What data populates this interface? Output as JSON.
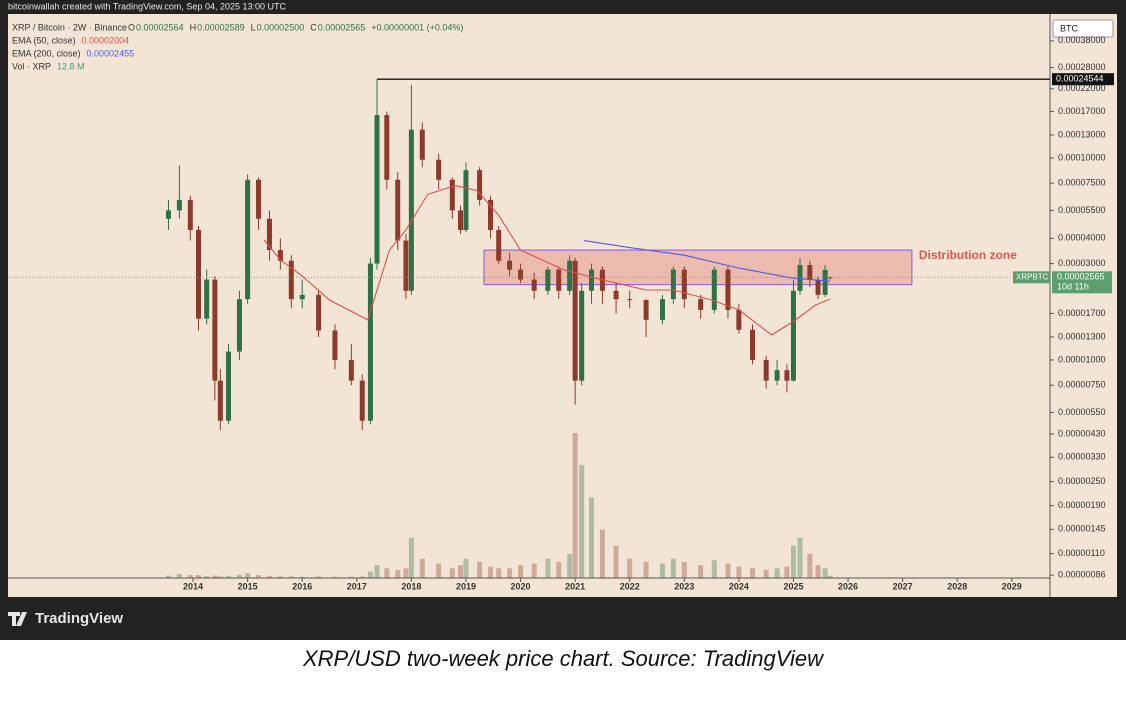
{
  "header": "bitcoinwallah created with TradingView.com, Sep 04, 2025 13:00 UTC",
  "legend": {
    "symbol": "XRP / Bitcoin · 2W · Binance",
    "ohlc": [
      {
        "key": "O",
        "value": "0.00002564"
      },
      {
        "key": "H",
        "value": "0.00002589"
      },
      {
        "key": "L",
        "value": "0.00002500"
      },
      {
        "key": "C",
        "value": "0.00002565"
      }
    ],
    "change": "+0.00000001 (+0.04%)",
    "indicators": [
      {
        "name": "EMA (50, close)",
        "value": "0.00002004",
        "color": "#e0504a"
      },
      {
        "name": "EMA (200, close)",
        "value": "0.00002455",
        "color": "#4a5ee0"
      },
      {
        "name": "Vol · XRP",
        "value": "12.8 M",
        "color": "#3d9a8b"
      }
    ]
  },
  "chart_data": {
    "type": "candlestick",
    "y_axis_unit": "BTC",
    "log_scale": true,
    "xlim": [
      2010.61,
      2029.7
    ],
    "xticks": [
      2014,
      2015,
      2016,
      2017,
      2018,
      2019,
      2020,
      2021,
      2022,
      2023,
      2024,
      2025,
      2026,
      2027,
      2028,
      2029
    ],
    "ylim": [
      8.33e-07,
      0.000516
    ],
    "yticks": [
      {
        "value": 0.00038,
        "label": "0.00038000"
      },
      {
        "value": 0.00028,
        "label": "0.00028000"
      },
      {
        "value": 0.00022,
        "label": "0.00022000"
      },
      {
        "value": 0.00017,
        "label": "0.00017000"
      },
      {
        "value": 0.00013,
        "label": "0.00013000"
      },
      {
        "value": 0.0001,
        "label": "0.00010000"
      },
      {
        "value": 7.5e-05,
        "label": "0.00007500"
      },
      {
        "value": 5.5e-05,
        "label": "0.00005500"
      },
      {
        "value": 4e-05,
        "label": "0.00004000"
      },
      {
        "value": 3e-05,
        "label": "0.00003000"
      },
      {
        "value": 1.7e-05,
        "label": "0.00001700"
      },
      {
        "value": 1.3e-05,
        "label": "0.00001300"
      },
      {
        "value": 1e-05,
        "label": "0.00001000"
      },
      {
        "value": 7.5e-06,
        "label": "0.00000750"
      },
      {
        "value": 5.5e-06,
        "label": "0.00000550"
      },
      {
        "value": 4.3e-06,
        "label": "0.00000430"
      },
      {
        "value": 3.3e-06,
        "label": "0.00000330"
      },
      {
        "value": 2.5e-06,
        "label": "0.00000250"
      },
      {
        "value": 1.9e-06,
        "label": "0.00000190"
      },
      {
        "value": 1.45e-06,
        "label": "0.00000145"
      },
      {
        "value": 1.1e-06,
        "label": "0.00000110"
      },
      {
        "value": 8.6e-07,
        "label": "0.00000086"
      }
    ],
    "up_color": "#2f7044",
    "down_color": "#8c3a2c",
    "candles": {
      "x": [
        2013.55,
        2013.75,
        2013.95,
        2014.1,
        2014.25,
        2014.4,
        2014.5,
        2014.65,
        2014.85,
        2015.0,
        2015.2,
        2015.4,
        2015.6,
        2015.8,
        2016.0,
        2016.3,
        2016.6,
        2016.9,
        2017.1,
        2017.25,
        2017.37,
        2017.55,
        2017.75,
        2017.9,
        2018.0,
        2018.2,
        2018.5,
        2018.75,
        2018.9,
        2019.0,
        2019.25,
        2019.45,
        2019.6,
        2019.8,
        2020.0,
        2020.25,
        2020.5,
        2020.7,
        2020.9,
        2021.0,
        2021.12,
        2021.3,
        2021.5,
        2021.75,
        2022.0,
        2022.3,
        2022.6,
        2022.8,
        2023.0,
        2023.3,
        2023.55,
        2023.8,
        2024.0,
        2024.25,
        2024.5,
        2024.7,
        2024.88,
        2025.0,
        2025.12,
        2025.3,
        2025.45,
        2025.58,
        2025.67
      ],
      "open": [
        5e-05,
        5.5e-05,
        6.2e-05,
        4.4e-05,
        1.6e-05,
        2.5e-05,
        7.9e-06,
        5e-06,
        1.1e-05,
        2e-05,
        7.8e-05,
        5e-05,
        3.5e-05,
        3.1e-05,
        2e-05,
        2.1e-05,
        1.4e-05,
        1e-05,
        7.9e-06,
        5e-06,
        3e-05,
        0.000163,
        7.8e-05,
        3.9e-05,
        2.2e-05,
        0.000138,
        9.8e-05,
        7.8e-05,
        5.5e-05,
        4.4e-05,
        8.7e-05,
        6.2e-05,
        4.4e-05,
        3.1e-05,
        2.8e-05,
        2.5e-05,
        2.2e-05,
        2.8e-05,
        2.2e-05,
        3.1e-05,
        7.9e-06,
        2.2e-05,
        2.8e-05,
        2.2e-05,
        2e-05,
        1.98e-05,
        1.58e-05,
        2e-05,
        2.8e-05,
        2e-05,
        1.77e-05,
        2.8e-05,
        1.77e-05,
        1.41e-05,
        1e-05,
        7.9e-06,
        8.9e-06,
        7.9e-06,
        2.2e-05,
        2.95e-05,
        2.49e-05,
        2.1e-05,
        2.564e-05
      ],
      "high": [
        6.2e-05,
        9.2e-05,
        6.5e-05,
        4.6e-05,
        2.8e-05,
        2.6e-05,
        9e-06,
        1.2e-05,
        2.2e-05,
        8.3e-05,
        8e-05,
        5.5e-05,
        4e-05,
        3.3e-05,
        2.5e-05,
        2.2e-05,
        1.5e-05,
        1.2e-05,
        8.5e-06,
        3.2e-05,
        0.000245,
        0.00017,
        8.5e-05,
        4.2e-05,
        0.00023,
        0.00015,
        0.000105,
        8e-05,
        5.8e-05,
        9.5e-05,
        9e-05,
        6.5e-05,
        4.6e-05,
        3.4e-05,
        3e-05,
        2.7e-05,
        2.9e-05,
        2.9e-05,
        3.3e-05,
        3.2e-05,
        2.4e-05,
        3e-05,
        2.9e-05,
        2.4e-05,
        2.2e-05,
        2e-05,
        2.1e-05,
        2.9e-05,
        2.9e-05,
        2.1e-05,
        2.9e-05,
        2.9e-05,
        1.9e-05,
        1.5e-05,
        1.05e-05,
        1e-05,
        9.5e-06,
        2.5e-05,
        3.2e-05,
        3.1e-05,
        2.6e-05,
        2.95e-05,
        2.589e-05
      ],
      "low": [
        4.4e-05,
        5e-05,
        3.9e-05,
        1.4e-05,
        1.5e-05,
        6.3e-06,
        4.5e-06,
        4.8e-06,
        1e-05,
        1.9e-05,
        4.4e-05,
        3.1e-05,
        2.8e-05,
        1.8e-05,
        1.8e-05,
        1.3e-05,
        9e-06,
        7.5e-06,
        4.5e-06,
        4.8e-06,
        2.8e-05,
        7e-05,
        3.5e-05,
        2e-05,
        2.1e-05,
        9e-05,
        7e-05,
        5e-05,
        4.2e-05,
        4.3e-05,
        5.8e-05,
        4e-05,
        3e-05,
        2.6e-05,
        2.4e-05,
        2e-05,
        2.1e-05,
        2e-05,
        2.1e-05,
        6e-06,
        7.5e-06,
        1.9e-05,
        1.9e-05,
        1.7e-05,
        1.8e-05,
        1.3e-05,
        1.5e-05,
        1.9e-05,
        1.8e-05,
        1.6e-05,
        1.7e-05,
        1.6e-05,
        1.35e-05,
        9.5e-06,
        7.2e-06,
        7.5e-06,
        6.9e-06,
        7.8e-06,
        2.1e-05,
        2.3e-05,
        2e-05,
        2.05e-05,
        2.5e-05
      ],
      "close": [
        5.5e-05,
        6.2e-05,
        4.4e-05,
        1.6e-05,
        2.5e-05,
        7.9e-06,
        5e-06,
        1.1e-05,
        2e-05,
        7.8e-05,
        5e-05,
        3.5e-05,
        3.1e-05,
        2e-05,
        2.1e-05,
        1.4e-05,
        1e-05,
        7.9e-06,
        5e-06,
        3e-05,
        0.000163,
        7.8e-05,
        3.9e-05,
        2.2e-05,
        0.000138,
        9.8e-05,
        7.8e-05,
        5.5e-05,
        4.4e-05,
        8.7e-05,
        6.2e-05,
        4.4e-05,
        3.1e-05,
        2.8e-05,
        2.5e-05,
        2.2e-05,
        2.8e-05,
        2.2e-05,
        3.1e-05,
        7.9e-06,
        2.2e-05,
        2.8e-05,
        2.2e-05,
        2e-05,
        1.98e-05,
        1.58e-05,
        2e-05,
        2.8e-05,
        2e-05,
        1.77e-05,
        2.8e-05,
        1.77e-05,
        1.41e-05,
        1e-05,
        7.9e-06,
        8.9e-06,
        7.9e-06,
        2.2e-05,
        2.95e-05,
        2.49e-05,
        2.1e-05,
        2.79e-05,
        2.565e-05
      ]
    },
    "volume": {
      "ylim": [
        0,
        3500
      ],
      "values": [
        15,
        25,
        20,
        18,
        12,
        15,
        10,
        12,
        20,
        30,
        18,
        12,
        10,
        10,
        8,
        10,
        8,
        8,
        10,
        40,
        80,
        60,
        50,
        60,
        250,
        120,
        90,
        60,
        80,
        120,
        100,
        70,
        60,
        60,
        80,
        90,
        120,
        100,
        150,
        900,
        700,
        500,
        300,
        200,
        120,
        100,
        90,
        120,
        100,
        80,
        110,
        90,
        70,
        60,
        50,
        60,
        70,
        200,
        250,
        150,
        80,
        60,
        12.8
      ]
    },
    "series": [
      {
        "name": "EMA (50, close)",
        "color": "#e0504a",
        "x": [
          2015.3,
          2015.6,
          2016.0,
          2016.5,
          2017.2,
          2017.6,
          2017.9,
          2018.3,
          2018.8,
          2019.2,
          2019.6,
          2020.0,
          2020.8,
          2021.5,
          2022.3,
          2022.8,
          2023.5,
          2024.0,
          2024.6,
          2025.0,
          2025.4,
          2025.67
        ],
        "values": [
          3.93e-05,
          3.13e-05,
          2.6e-05,
          1.98e-05,
          1.58e-05,
          3.5e-05,
          4.4e-05,
          6.6e-05,
          7.3e-05,
          6.9e-05,
          5.2e-05,
          3.5e-05,
          2.79e-05,
          2.49e-05,
          2.22e-05,
          2.22e-05,
          1.98e-05,
          1.77e-05,
          1.33e-05,
          1.55e-05,
          1.87e-05,
          2.004e-05
        ]
      },
      {
        "name": "EMA (200, close)",
        "color": "#4a5ee0",
        "x": [
          2021.16,
          2022.0,
          2023.0,
          2024.0,
          2024.95,
          2025.67
        ],
        "values": [
          3.9e-05,
          3.6e-05,
          3.3e-05,
          2.85e-05,
          2.55e-05,
          2.455e-05
        ]
      }
    ],
    "resistance_line": {
      "value": 0.00024544,
      "label": "0.00024544",
      "x_start": 2017.37
    },
    "zone": {
      "label": "Distribution zone",
      "x": [
        2019.33,
        2027.17
      ],
      "y": [
        2.36e-05,
        3.5e-05
      ],
      "color": "#e05555"
    },
    "last_price": {
      "symbol": "XRPBTC",
      "value": 2.565e-05,
      "label": "0.00002565",
      "countdown": "10d 11h",
      "color": "#5d9e6e"
    }
  },
  "footer": {
    "brand": "TradingView",
    "caption": "XRP/USD two-week price chart. Source: TradingView"
  }
}
